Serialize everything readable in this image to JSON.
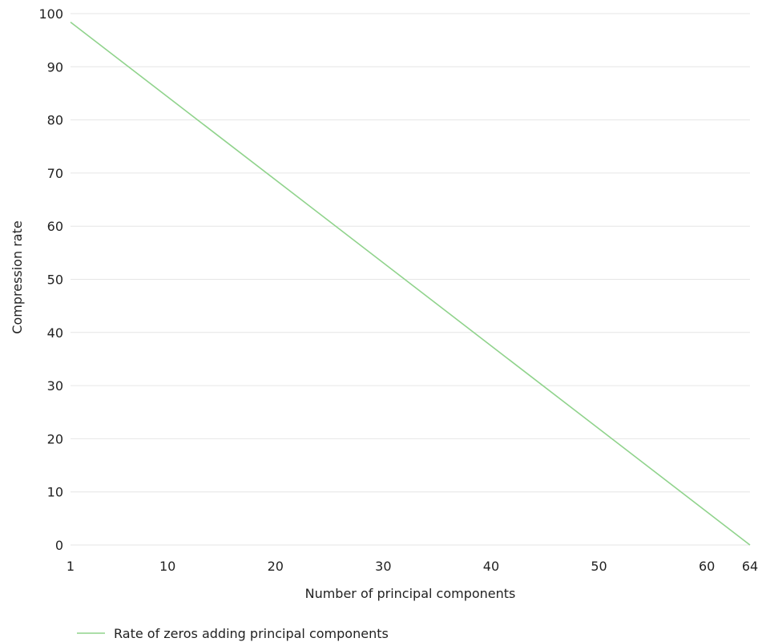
{
  "chart_data": {
    "type": "line",
    "title": "",
    "xlabel": "Number of principal components",
    "ylabel": "Compression rate",
    "xlim": [
      1,
      64
    ],
    "ylim": [
      0,
      100
    ],
    "x_ticks": [
      1,
      10,
      20,
      30,
      40,
      50,
      60,
      64
    ],
    "y_ticks": [
      0,
      10,
      20,
      30,
      40,
      50,
      60,
      70,
      80,
      90,
      100
    ],
    "grid": "horizontal",
    "legend_position": "bottom-left",
    "series": [
      {
        "name": "Rate of zeros adding principal components",
        "color": "#90d38c",
        "x": [
          1,
          64
        ],
        "y": [
          98.4,
          0
        ]
      }
    ]
  }
}
